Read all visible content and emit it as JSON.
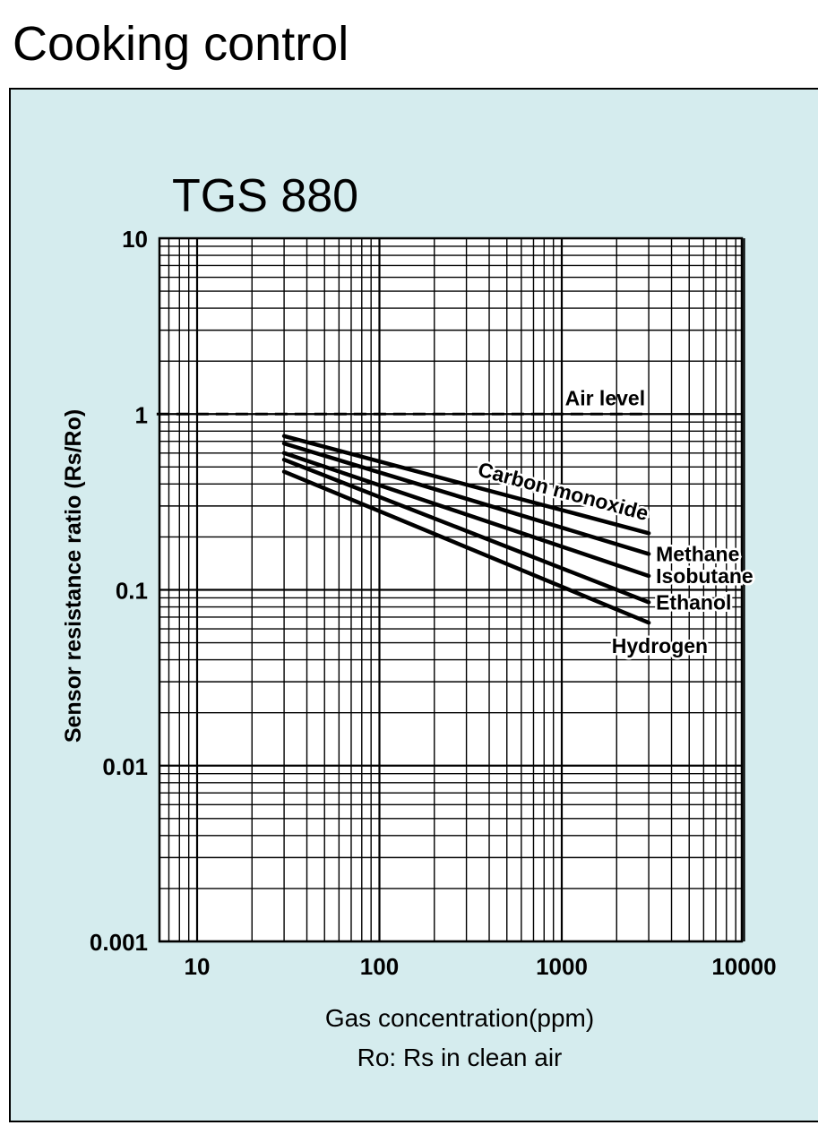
{
  "slide": {
    "title": "Cooking control"
  },
  "colors": {
    "panel_background": "#d5ecee",
    "plot_background": "#ffffff",
    "ink": "#000000"
  },
  "chart_data": {
    "type": "line",
    "title": "TGS 880",
    "xlabel": "Gas concentration(ppm)",
    "xlabel_note": "Ro: Rs in clean air",
    "ylabel": "Sensor resistance ratio (Rs/Ro)",
    "xscale": "log",
    "yscale": "log",
    "xlim": [
      6,
      10000
    ],
    "ylim": [
      0.001,
      10
    ],
    "x_ticks": [
      10,
      100,
      1000,
      10000
    ],
    "x_tick_labels": [
      "10",
      "100",
      "1000",
      "10000"
    ],
    "y_ticks": [
      0.001,
      0.01,
      0.1,
      1,
      10
    ],
    "y_tick_labels": [
      "0.001",
      "0.01",
      "0.1",
      "1",
      "10"
    ],
    "grid": true,
    "reference_lines": [
      {
        "name": "Air level",
        "y": 1,
        "x": [
          6,
          3000
        ],
        "style": "dashed"
      }
    ],
    "series": [
      {
        "name": "Carbon monoxide",
        "x": [
          30,
          3000
        ],
        "y": [
          0.75,
          0.21
        ]
      },
      {
        "name": "Methane",
        "x": [
          30,
          3000
        ],
        "y": [
          0.68,
          0.16
        ]
      },
      {
        "name": "Isobutane",
        "x": [
          30,
          3000
        ],
        "y": [
          0.6,
          0.12
        ]
      },
      {
        "name": "Ethanol",
        "x": [
          30,
          3000
        ],
        "y": [
          0.55,
          0.085
        ]
      },
      {
        "name": "Hydrogen",
        "x": [
          30,
          3000
        ],
        "y": [
          0.47,
          0.065
        ]
      }
    ]
  }
}
